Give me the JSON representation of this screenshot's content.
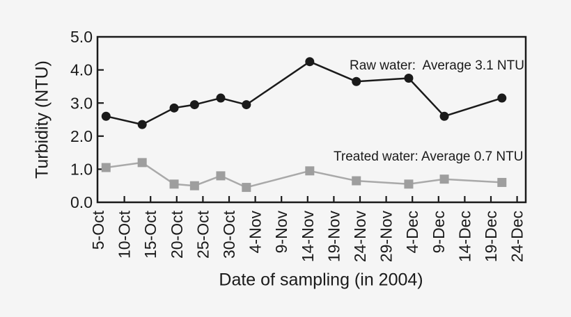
{
  "page": {
    "background_color": "#f5f5f5",
    "text_color": "#1a1a1a"
  },
  "chart_data": {
    "type": "line",
    "title": "",
    "xlabel": "Date of sampling (in 2004)",
    "ylabel": "Turbidity (NTU)",
    "ylim": [
      0.0,
      5.0
    ],
    "y_tick_values": [
      0,
      1,
      2,
      3,
      4,
      5
    ],
    "y_tick_labels": [
      "0.0",
      "1.0",
      "2.0",
      "3.0",
      "4.0",
      "5.0"
    ],
    "x_tick_labels": [
      "5-Oct",
      "10-Oct",
      "15-Oct",
      "20-Oct",
      "25-Oct",
      "30-Oct",
      "4-Nov",
      "9-Nov",
      "14-Nov",
      "19-Nov",
      "24-Nov",
      "29-Nov",
      "4-Dec",
      "9-Dec",
      "14-Dec",
      "19-Dec",
      "24-Dec"
    ],
    "x_tick_days": [
      0,
      5,
      10,
      15,
      20,
      25,
      30,
      35,
      40,
      45,
      50,
      55,
      60,
      65,
      70,
      75,
      80
    ],
    "x_range_days": [
      0,
      81.7
    ],
    "grid": false,
    "legend_position": "annotations-inside-plot",
    "series": [
      {
        "name": "Raw water",
        "annotation": "Raw water:  Average 3.1 NTU",
        "average_ntu": 3.1,
        "marker": "circle",
        "marker_color": "#1a1a1a",
        "line_color": "#1a1a1a",
        "dates": [
          "6-Oct",
          "13-Oct",
          "19-Oct",
          "23-Oct",
          "28-Oct",
          "2-Nov",
          "14-Nov",
          "23-Nov",
          "3-Dec",
          "10-Dec",
          "21-Dec"
        ],
        "x_days": [
          1.5,
          8.4,
          14.5,
          18.4,
          23.4,
          28.3,
          40.4,
          49.3,
          59.3,
          66.1,
          77.1
        ],
        "values": [
          2.6,
          2.35,
          2.85,
          2.95,
          3.15,
          2.95,
          4.25,
          3.65,
          3.75,
          2.6,
          3.15
        ]
      },
      {
        "name": "Treated water",
        "annotation": "Treated water: Average 0.7 NTU",
        "average_ntu": 0.7,
        "marker": "square",
        "marker_color": "#9e9e9e",
        "line_color": "#a9a9a9",
        "dates": [
          "6-Oct",
          "13-Oct",
          "19-Oct",
          "23-Oct",
          "28-Oct",
          "2-Nov",
          "14-Nov",
          "23-Nov",
          "3-Dec",
          "10-Dec",
          "21-Dec"
        ],
        "x_days": [
          1.5,
          8.4,
          14.5,
          18.4,
          23.4,
          28.3,
          40.4,
          49.3,
          59.3,
          66.1,
          77.1
        ],
        "values": [
          1.05,
          1.2,
          0.55,
          0.5,
          0.8,
          0.45,
          0.95,
          0.65,
          0.55,
          0.7,
          0.6
        ]
      }
    ]
  }
}
